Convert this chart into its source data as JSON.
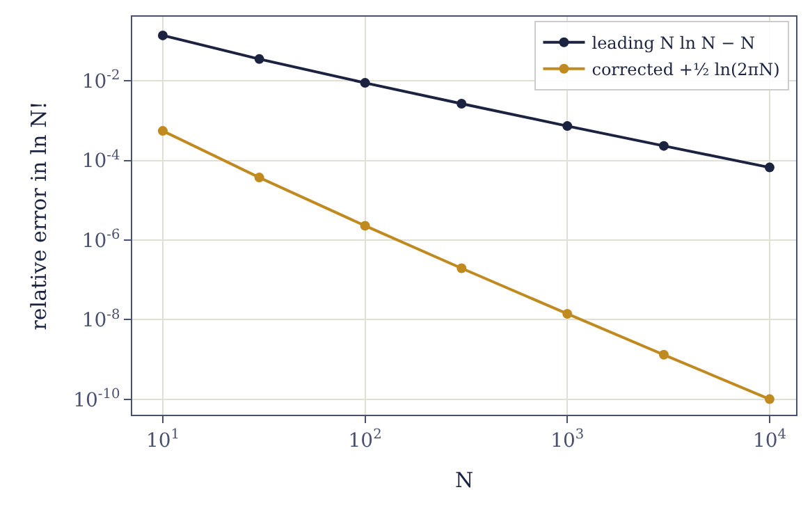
{
  "chart_data": {
    "type": "line",
    "xlabel": "N",
    "ylabel": "relative error in ln N!",
    "x": [
      10,
      30,
      100,
      300,
      1000,
      3000,
      10000
    ],
    "series": [
      {
        "name": "leading N ln N − N",
        "color": "#1b2340",
        "values": [
          0.1376,
          0.0351,
          0.00886,
          0.002665,
          0.000731,
          0.0002317,
          6.666e-05
        ]
      },
      {
        "name": "corrected +½ ln(2πN)",
        "color": "#c08a20",
        "values": [
          0.000552,
          3.72e-05,
          2.29e-06,
          1.963e-07,
          1.41e-08,
          1.321e-09,
          1.015e-10
        ]
      }
    ],
    "log": "xy",
    "xlim": [
      7.06,
      13520
    ],
    "ylim": [
      4.12e-11,
      0.406
    ],
    "xticks": [
      {
        "value": 10,
        "label": "10$^{1}$"
      },
      {
        "value": 100,
        "label": "10$^{2}$"
      },
      {
        "value": 1000,
        "label": "10$^{3}$"
      },
      {
        "value": 10000,
        "label": "10$^{4}$"
      }
    ],
    "yticks": [
      {
        "value": 0.01,
        "label": "10$^{-2}$"
      },
      {
        "value": 0.0001,
        "label": "10$^{-4}$"
      },
      {
        "value": 1e-06,
        "label": "10$^{-6}$"
      },
      {
        "value": 1e-08,
        "label": "10$^{-8}$"
      },
      {
        "value": 1e-10,
        "label": "10$^{-10}$"
      }
    ],
    "grid": true,
    "legend": "top right",
    "marker": "circle",
    "line_style": "solid"
  }
}
